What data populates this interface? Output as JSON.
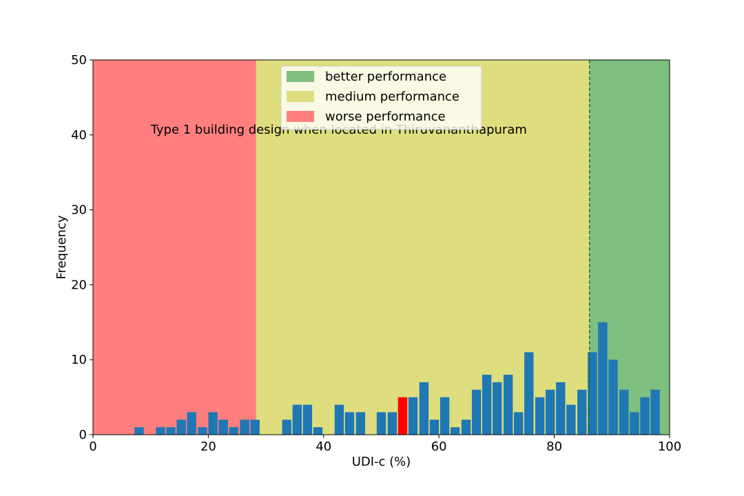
{
  "chart_data": {
    "type": "bar",
    "title": "",
    "xlabel": "UDI-c (%)",
    "ylabel": "Frequency",
    "xlim": [
      0,
      100
    ],
    "ylim": [
      0,
      50
    ],
    "xticks": [
      0,
      20,
      40,
      60,
      80,
      100
    ],
    "yticks": [
      0,
      10,
      20,
      30,
      40,
      50
    ],
    "bar_width": 1.6,
    "bar_color": "#1f77b4",
    "highlight_color": "#ff0000",
    "bars": [
      {
        "x": 8.0,
        "y": 1
      },
      {
        "x": 11.7,
        "y": 1
      },
      {
        "x": 13.5,
        "y": 1
      },
      {
        "x": 15.3,
        "y": 2
      },
      {
        "x": 17.1,
        "y": 3
      },
      {
        "x": 19.0,
        "y": 1
      },
      {
        "x": 20.8,
        "y": 3
      },
      {
        "x": 22.6,
        "y": 2
      },
      {
        "x": 24.4,
        "y": 1
      },
      {
        "x": 26.3,
        "y": 2
      },
      {
        "x": 28.1,
        "y": 2
      },
      {
        "x": 33.6,
        "y": 2
      },
      {
        "x": 35.4,
        "y": 4
      },
      {
        "x": 37.2,
        "y": 4
      },
      {
        "x": 39.0,
        "y": 1
      },
      {
        "x": 42.7,
        "y": 4
      },
      {
        "x": 44.5,
        "y": 3
      },
      {
        "x": 46.4,
        "y": 3
      },
      {
        "x": 50.0,
        "y": 3
      },
      {
        "x": 51.9,
        "y": 3
      },
      {
        "x": 53.7,
        "y": 5,
        "highlight": true
      },
      {
        "x": 55.5,
        "y": 5
      },
      {
        "x": 57.4,
        "y": 7
      },
      {
        "x": 59.2,
        "y": 2
      },
      {
        "x": 61.0,
        "y": 5
      },
      {
        "x": 62.8,
        "y": 1
      },
      {
        "x": 64.7,
        "y": 2
      },
      {
        "x": 66.5,
        "y": 6
      },
      {
        "x": 68.3,
        "y": 8
      },
      {
        "x": 70.1,
        "y": 7
      },
      {
        "x": 72.0,
        "y": 8
      },
      {
        "x": 73.8,
        "y": 3
      },
      {
        "x": 75.6,
        "y": 11
      },
      {
        "x": 77.5,
        "y": 5
      },
      {
        "x": 79.3,
        "y": 6
      },
      {
        "x": 81.1,
        "y": 7
      },
      {
        "x": 82.9,
        "y": 4
      },
      {
        "x": 84.8,
        "y": 6
      },
      {
        "x": 86.6,
        "y": 11
      },
      {
        "x": 88.4,
        "y": 15
      },
      {
        "x": 90.2,
        "y": 10
      },
      {
        "x": 92.1,
        "y": 6
      },
      {
        "x": 93.9,
        "y": 3
      },
      {
        "x": 95.7,
        "y": 5
      },
      {
        "x": 97.5,
        "y": 6
      }
    ],
    "regions": [
      {
        "name": "worse performance",
        "from": 0,
        "to": 28.3,
        "color": "#ff7f7f"
      },
      {
        "name": "medium performance",
        "from": 28.3,
        "to": 86.1,
        "color": "#dede7f"
      },
      {
        "name": "better performance",
        "from": 86.1,
        "to": 100,
        "color": "#7fbf7f"
      }
    ],
    "vline": {
      "x": 86.1,
      "color": "#1a7a1a",
      "style": "dashed"
    },
    "annotation": {
      "text": "Type 1 building design when located in Thiruvananthapuram",
      "x": 10,
      "y": 35
    },
    "legend": {
      "placement": "top-center",
      "entries": [
        {
          "label": "better performance",
          "color": "#7fbf7f"
        },
        {
          "label": "medium performance",
          "color": "#dede7f"
        },
        {
          "label": "worse performance",
          "color": "#ff7f7f"
        }
      ]
    }
  }
}
